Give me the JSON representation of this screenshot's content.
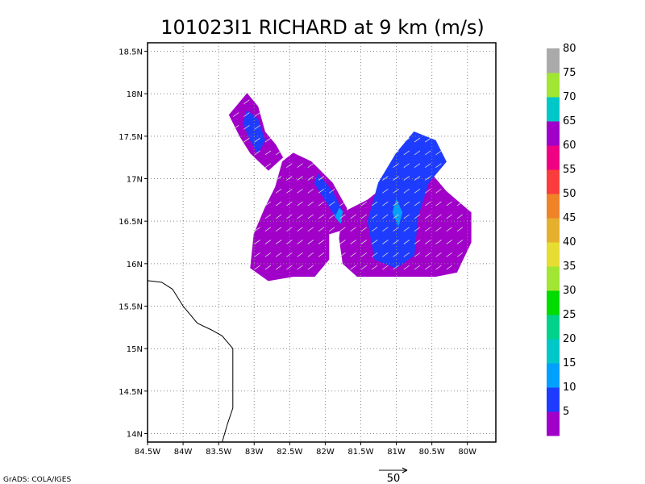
{
  "chart_data": {
    "type": "heatmap",
    "title": "101023I1 RICHARD at 9 km (m/s)",
    "xlabel": "",
    "ylabel": "",
    "xlim": [
      -84.5,
      -79.6
    ],
    "ylim": [
      13.9,
      18.6
    ],
    "x_ticks": [
      {
        "value": -84.5,
        "label": "84.5W"
      },
      {
        "value": -84.0,
        "label": "84W"
      },
      {
        "value": -83.5,
        "label": "83.5W"
      },
      {
        "value": -83.0,
        "label": "83W"
      },
      {
        "value": -82.5,
        "label": "82.5W"
      },
      {
        "value": -82.0,
        "label": "82W"
      },
      {
        "value": -81.5,
        "label": "81.5W"
      },
      {
        "value": -81.0,
        "label": "81W"
      },
      {
        "value": -80.5,
        "label": "80.5W"
      },
      {
        "value": -80.0,
        "label": "80W"
      }
    ],
    "y_ticks": [
      {
        "value": 14.0,
        "label": "14N"
      },
      {
        "value": 14.5,
        "label": "14.5N"
      },
      {
        "value": 15.0,
        "label": "15N"
      },
      {
        "value": 15.5,
        "label": "15.5N"
      },
      {
        "value": 16.0,
        "label": "16N"
      },
      {
        "value": 16.5,
        "label": "16.5N"
      },
      {
        "value": 17.0,
        "label": "17N"
      },
      {
        "value": 17.5,
        "label": "17.5N"
      },
      {
        "value": 18.0,
        "label": "18N"
      },
      {
        "value": 18.5,
        "label": "18.5N"
      }
    ],
    "grid": true,
    "colorbar": {
      "colors": [
        "#a000c8",
        "#1e3cff",
        "#00a0ff",
        "#00c8c8",
        "#00d28c",
        "#00dc00",
        "#a0e632",
        "#e6dc32",
        "#e6af2d",
        "#f08228",
        "#fa3c3c",
        "#f00082",
        "#a000c8",
        "#00c8c8",
        "#a0e632",
        "#aaaaaa"
      ],
      "labels": [
        "5",
        "10",
        "15",
        "20",
        "25",
        "30",
        "35",
        "40",
        "45",
        "50",
        "55",
        "60",
        "65",
        "70",
        "75",
        "80"
      ]
    },
    "regions": [
      {
        "name": "northwest band",
        "value": 5,
        "color": "#a000c8",
        "polygon": [
          [
            -83.35,
            17.75
          ],
          [
            -83.1,
            18.0
          ],
          [
            -82.95,
            17.85
          ],
          [
            -82.85,
            17.55
          ],
          [
            -82.7,
            17.4
          ],
          [
            -82.6,
            17.25
          ],
          [
            -82.8,
            17.1
          ],
          [
            -83.05,
            17.3
          ],
          [
            -83.2,
            17.5
          ]
        ]
      },
      {
        "name": "northwest band core",
        "value": 10,
        "color": "#1e3cff",
        "polygon": [
          [
            -83.1,
            17.8
          ],
          [
            -82.95,
            17.7
          ],
          [
            -82.85,
            17.45
          ],
          [
            -82.95,
            17.3
          ],
          [
            -83.05,
            17.45
          ],
          [
            -83.15,
            17.65
          ]
        ]
      },
      {
        "name": "central arc",
        "value": 5,
        "color": "#a000c8",
        "polygon": [
          [
            -82.6,
            17.2
          ],
          [
            -82.45,
            17.3
          ],
          [
            -82.2,
            17.2
          ],
          [
            -81.9,
            16.95
          ],
          [
            -81.7,
            16.65
          ],
          [
            -81.75,
            16.4
          ],
          [
            -81.95,
            16.35
          ],
          [
            -81.95,
            16.05
          ],
          [
            -82.15,
            15.85
          ],
          [
            -82.45,
            15.85
          ],
          [
            -82.8,
            15.8
          ],
          [
            -83.05,
            15.95
          ],
          [
            -83.0,
            16.35
          ],
          [
            -82.85,
            16.65
          ],
          [
            -82.7,
            16.9
          ],
          [
            -82.65,
            17.05
          ]
        ]
      },
      {
        "name": "central arc band",
        "value": 10,
        "color": "#1e3cff",
        "polygon": [
          [
            -82.1,
            17.05
          ],
          [
            -81.9,
            16.85
          ],
          [
            -81.75,
            16.6
          ],
          [
            -81.85,
            16.55
          ],
          [
            -82.0,
            16.75
          ],
          [
            -82.15,
            16.95
          ]
        ]
      },
      {
        "name": "central arc peak",
        "value": 15,
        "color": "#00a0ff",
        "polygon": [
          [
            -81.8,
            16.65
          ],
          [
            -81.68,
            16.55
          ],
          [
            -81.75,
            16.45
          ],
          [
            -81.86,
            16.55
          ]
        ]
      },
      {
        "name": "eastern cluster",
        "value": 5,
        "color": "#a000c8",
        "polygon": [
          [
            -81.75,
            16.6
          ],
          [
            -81.4,
            16.75
          ],
          [
            -81.1,
            16.95
          ],
          [
            -80.85,
            17.15
          ],
          [
            -80.55,
            17.1
          ],
          [
            -80.3,
            16.85
          ],
          [
            -79.95,
            16.6
          ],
          [
            -79.95,
            16.25
          ],
          [
            -80.15,
            15.9
          ],
          [
            -80.45,
            15.85
          ],
          [
            -80.85,
            15.85
          ],
          [
            -81.2,
            15.85
          ],
          [
            -81.55,
            15.85
          ],
          [
            -81.75,
            16.0
          ],
          [
            -81.8,
            16.3
          ]
        ]
      },
      {
        "name": "eastern cluster core",
        "value": 10,
        "color": "#1e3cff",
        "polygon": [
          [
            -81.25,
            16.95
          ],
          [
            -81.0,
            17.3
          ],
          [
            -80.75,
            17.55
          ],
          [
            -80.45,
            17.45
          ],
          [
            -80.3,
            17.2
          ],
          [
            -80.55,
            16.95
          ],
          [
            -80.7,
            16.55
          ],
          [
            -80.75,
            16.1
          ],
          [
            -81.0,
            15.95
          ],
          [
            -81.3,
            16.05
          ],
          [
            -81.4,
            16.5
          ]
        ]
      },
      {
        "name": "eastern cluster peak",
        "value": 15,
        "color": "#00a0ff",
        "polygon": [
          [
            -81.0,
            16.75
          ],
          [
            -80.92,
            16.6
          ],
          [
            -80.97,
            16.45
          ],
          [
            -81.05,
            16.6
          ]
        ]
      }
    ],
    "coastline": [
      [
        -84.5,
        15.8
      ],
      [
        -84.3,
        15.78
      ],
      [
        -84.15,
        15.7
      ],
      [
        -84.0,
        15.5
      ],
      [
        -83.8,
        15.3
      ],
      [
        -83.6,
        15.22
      ],
      [
        -83.45,
        15.15
      ],
      [
        -83.3,
        15.0
      ],
      [
        -83.3,
        14.7
      ],
      [
        -83.3,
        14.3
      ],
      [
        -83.38,
        14.1
      ],
      [
        -83.45,
        13.9
      ]
    ],
    "reference_vector": {
      "value": 50,
      "label": "50"
    }
  },
  "footer": {
    "credit": "GrADS: COLA/IGES"
  }
}
